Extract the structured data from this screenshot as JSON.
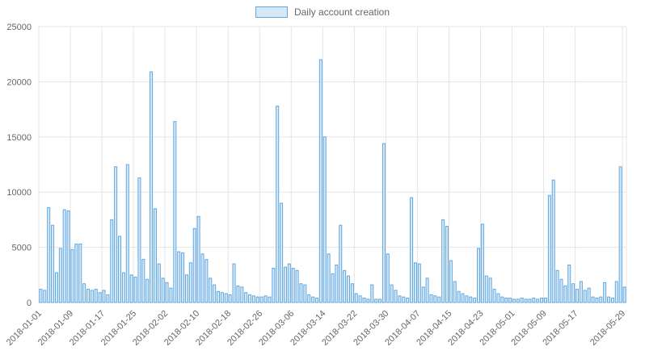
{
  "chart_data": {
    "type": "bar",
    "legend_label": "Daily account creation",
    "legend_position": "top-center",
    "grid": true,
    "x_start": "2018-01-01",
    "x_interval": "daily",
    "ylim": [
      0,
      25000
    ],
    "y_ticks": [
      0,
      5000,
      10000,
      15000,
      20000,
      25000
    ],
    "x_tick_labels": [
      "2018-01-01",
      "2018-01-09",
      "2018-01-17",
      "2018-01-25",
      "2018-02-02",
      "2018-02-10",
      "2018-02-18",
      "2018-02-26",
      "2018-03-06",
      "2018-03-14",
      "2018-03-22",
      "2018-03-30",
      "2018-04-07",
      "2018-04-15",
      "2018-04-23",
      "2018-05-01",
      "2018-05-09",
      "2018-05-17",
      "2018-05-29"
    ],
    "x_tick_indices": [
      0,
      8,
      16,
      24,
      32,
      40,
      48,
      56,
      64,
      72,
      80,
      88,
      96,
      104,
      112,
      120,
      128,
      136,
      148
    ],
    "values": [
      1200,
      1100,
      8600,
      7000,
      2700,
      4900,
      8400,
      8300,
      4800,
      5300,
      5300,
      1700,
      1200,
      1100,
      1200,
      900,
      1100,
      700,
      7500,
      12300,
      6000,
      2700,
      12500,
      2500,
      2300,
      11300,
      3900,
      2100,
      20900,
      8500,
      3500,
      2200,
      1800,
      1300,
      16400,
      4600,
      4500,
      2500,
      3600,
      6700,
      7800,
      4400,
      3900,
      2200,
      1600,
      1000,
      900,
      800,
      700,
      3500,
      1500,
      1400,
      900,
      700,
      600,
      500,
      500,
      600,
      500,
      3100,
      17800,
      9000,
      3200,
      3500,
      3100,
      2900,
      1700,
      1600,
      700,
      500,
      400,
      22000,
      15000,
      4400,
      2600,
      3400,
      7000,
      2900,
      2400,
      1700,
      800,
      600,
      400,
      300,
      1600,
      300,
      300,
      14400,
      4400,
      1600,
      1100,
      600,
      500,
      400,
      9500,
      3600,
      3500,
      1400,
      2200,
      700,
      600,
      500,
      7500,
      6900,
      3800,
      1900,
      1000,
      800,
      600,
      500,
      400,
      4900,
      7100,
      2400,
      2200,
      1200,
      800,
      500,
      400,
      400,
      300,
      300,
      400,
      300,
      300,
      400,
      300,
      400,
      400,
      9700,
      11100,
      2900,
      2100,
      1500,
      3400,
      1700,
      1200,
      1900,
      1100,
      1300,
      500,
      400,
      500,
      1800,
      500,
      400,
      1900,
      12300,
      1400
    ],
    "colors": {
      "bar_fill": "#d6e9f8",
      "bar_border": "#61a7e0",
      "grid_line": "#e5e5e5",
      "tick_text": "#666666"
    }
  }
}
